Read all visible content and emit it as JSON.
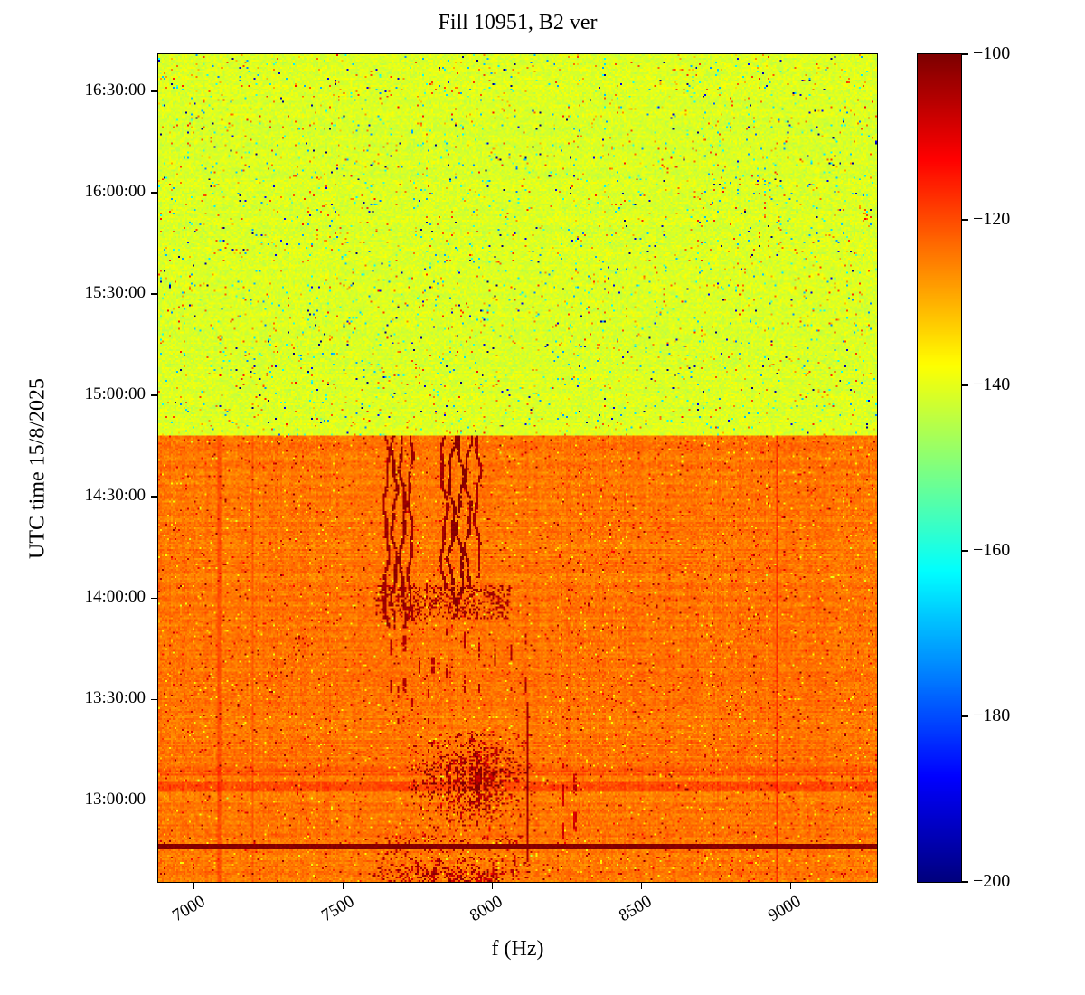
{
  "chart_data": {
    "type": "heatmap",
    "title": "Fill 10951, B2 ver",
    "xlabel": "f (Hz)",
    "ylabel": "UTC time 15/8/2025",
    "colormap": "jet",
    "x_range_hz": [
      6880,
      9290
    ],
    "x_ticks": [
      7000,
      7500,
      8000,
      8500,
      9000
    ],
    "x_tick_labels": [
      "7000",
      "7500",
      "8000",
      "8500",
      "9000"
    ],
    "time_range_min": [
      756,
      1001
    ],
    "y_tick_minutes": [
      780,
      810,
      840,
      870,
      900,
      930,
      960,
      990
    ],
    "y_tick_labels": [
      "13:00:00",
      "13:30:00",
      "14:00:00",
      "14:30:00",
      "15:00:00",
      "15:30:00",
      "16:00:00",
      "16:30:00"
    ],
    "boundary_time_min": 888,
    "boundary_time_label": "14:48",
    "colorbar": {
      "min": -200,
      "max": -100,
      "ticks": [
        -100,
        -120,
        -140,
        -160,
        -180,
        -200
      ],
      "tick_labels": [
        "−100",
        "−120",
        "−140",
        "−160",
        "−180",
        "−200"
      ]
    },
    "regions": [
      {
        "name": "lower-high-power-band",
        "time_min": [
          756,
          888
        ],
        "base_db": -124,
        "noise_db": 4
      },
      {
        "name": "upper-quiet-band",
        "time_min": [
          888,
          1001
        ],
        "base_db": -141,
        "noise_db": 4
      }
    ],
    "features": [
      {
        "type": "vline_wiggly",
        "f": 7645,
        "t0": 831,
        "t1": 888,
        "amp": 7,
        "period": 26,
        "width": 9,
        "db": -103
      },
      {
        "type": "vline_wiggly",
        "f": 7671,
        "t0": 831,
        "t1": 888,
        "amp": 8,
        "period": 22,
        "width": 9,
        "db": -102
      },
      {
        "type": "vline_wiggly",
        "f": 7699,
        "t0": 831,
        "t1": 888,
        "amp": 8,
        "period": 30,
        "width": 10,
        "db": -102
      },
      {
        "type": "vline_wiggly",
        "f": 7726,
        "t0": 833,
        "t1": 888,
        "amp": 7,
        "period": 24,
        "width": 9,
        "db": -103
      },
      {
        "type": "vline_wiggly",
        "f": 7838,
        "t0": 843,
        "t1": 888,
        "amp": 9,
        "period": 28,
        "width": 9,
        "db": -103
      },
      {
        "type": "vline_wiggly",
        "f": 7864,
        "t0": 838,
        "t1": 888,
        "amp": 9,
        "period": 24,
        "width": 10,
        "db": -101
      },
      {
        "type": "vline_wiggly",
        "f": 7892,
        "t0": 836,
        "t1": 888,
        "amp": 10,
        "period": 27,
        "width": 10,
        "db": -101
      },
      {
        "type": "vline_wiggly",
        "f": 7919,
        "t0": 843,
        "t1": 888,
        "amp": 9,
        "period": 22,
        "width": 9,
        "db": -102
      },
      {
        "type": "vline_wiggly",
        "f": 7950,
        "t0": 846,
        "t1": 888,
        "amp": 8,
        "period": 25,
        "width": 9,
        "db": -104
      },
      {
        "type": "rect_noise",
        "f0": 7610,
        "f1": 8060,
        "t0": 834,
        "t1": 844,
        "density": 0.3,
        "db": -104
      },
      {
        "type": "vseg_group",
        "freqs": [
          7662,
          7706,
          7756,
          7802,
          7848,
          7906,
          7956,
          8010,
          8062,
          8112
        ],
        "t0": 812,
        "t1": 831,
        "seg": 5,
        "gap": 8,
        "width": 8,
        "db": -105
      },
      {
        "type": "vseg_group",
        "freqs": [
          7684,
          7734,
          7788
        ],
        "t0": 803,
        "t1": 814,
        "seg": 4,
        "gap": 6,
        "width": 8,
        "db": -106
      },
      {
        "type": "blob",
        "fc": 7930,
        "fw": 150,
        "tc": 786,
        "tw": 11,
        "f0": 7710,
        "f1": 8150,
        "t0": 771,
        "t1": 800,
        "density": 0.9,
        "db": -100
      },
      {
        "type": "vline",
        "f": 8118,
        "t0": 762,
        "t1": 809,
        "width": 10,
        "db": -104
      },
      {
        "type": "vseg_group",
        "freqs": [
          8238,
          8278
        ],
        "t0": 769,
        "t1": 791,
        "seg": 6,
        "gap": 5,
        "width": 8,
        "db": -109
      },
      {
        "type": "vline",
        "f": 8955,
        "t0": 756,
        "t1": 888,
        "width": 9,
        "db": -117
      },
      {
        "type": "vline",
        "f": 7085,
        "t0": 756,
        "t1": 888,
        "width": 8,
        "db": -120
      },
      {
        "type": "vline",
        "f": 7195,
        "t0": 756,
        "t1": 888,
        "width": 7,
        "db": -121
      },
      {
        "type": "hline",
        "t": 766.5,
        "halfw": 0.7,
        "db": -102
      },
      {
        "type": "hband",
        "t0": 782.5,
        "t1": 786,
        "delta": 4
      },
      {
        "type": "hband",
        "t0": 787.5,
        "t1": 790,
        "delta": 3
      },
      {
        "type": "blob",
        "fc": 7880,
        "fw": 200,
        "tc": 757,
        "tw": 3,
        "f0": 7580,
        "f1": 8180,
        "t0": 756,
        "t1": 763,
        "density": 0.85,
        "db": -100
      },
      {
        "type": "rect_noise",
        "f0": 7600,
        "f1": 8120,
        "t0": 756,
        "t1": 770,
        "density": 0.1,
        "db": -106
      }
    ]
  }
}
